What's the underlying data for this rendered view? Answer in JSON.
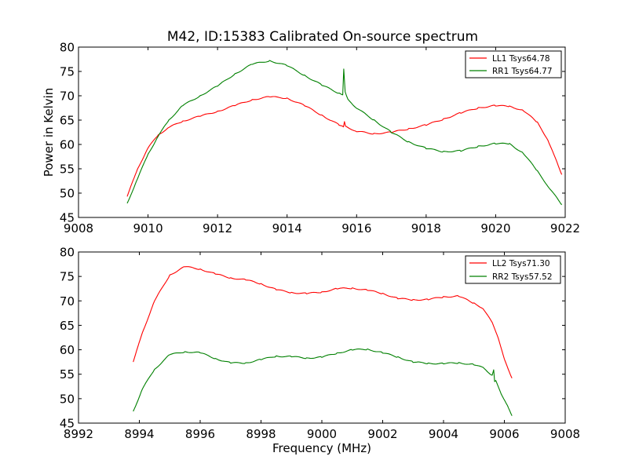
{
  "title": "M42, ID:15383 Calibrated On-source spectrum",
  "chart_data": [
    {
      "type": "line",
      "title": "M42, ID:15383 Calibrated On-source spectrum",
      "xlabel": "",
      "ylabel": "Power in Kelvin",
      "xlim": [
        9008,
        9022
      ],
      "ylim": [
        45,
        80
      ],
      "xticks": [
        9008,
        9010,
        9012,
        9014,
        9016,
        9018,
        9020,
        9022
      ],
      "yticks": [
        45,
        50,
        55,
        60,
        65,
        70,
        75,
        80
      ],
      "grid": false,
      "legend_position": "top-right",
      "series": [
        {
          "name": "LL1 Tsys64.78",
          "color": "#ff0000",
          "x": [
            9009.4,
            9009.7,
            9010.0,
            9010.3,
            9010.6,
            9011.0,
            9011.5,
            9012.0,
            9012.5,
            9013.0,
            9013.5,
            9014.0,
            9014.5,
            9015.0,
            9015.5,
            9015.62,
            9015.65,
            9015.68,
            9016.0,
            9016.5,
            9017.0,
            9017.5,
            9018.0,
            9018.5,
            9019.0,
            9019.5,
            9020.0,
            9020.4,
            9020.8,
            9021.2,
            9021.5,
            9021.9
          ],
          "y": [
            49.3,
            55.0,
            59.3,
            62.0,
            63.5,
            64.8,
            65.8,
            66.8,
            68.0,
            69.2,
            69.8,
            69.5,
            68.0,
            66.0,
            64.0,
            63.6,
            64.7,
            63.7,
            62.7,
            62.2,
            62.5,
            63.2,
            64.0,
            65.2,
            66.5,
            67.5,
            68.0,
            67.8,
            67.0,
            64.5,
            61.0,
            53.8
          ]
        },
        {
          "name": "RR1 Tsys64.77",
          "color": "#008000",
          "x": [
            9009.4,
            9009.7,
            9010.0,
            9010.3,
            9010.6,
            9011.0,
            9011.5,
            9012.0,
            9012.5,
            9013.0,
            9013.5,
            9014.0,
            9014.5,
            9015.0,
            9015.5,
            9015.6,
            9015.63,
            9015.67,
            9015.75,
            9016.0,
            9016.5,
            9017.0,
            9017.5,
            9018.0,
            9018.5,
            9019.0,
            9019.5,
            9020.0,
            9020.4,
            9020.8,
            9021.2,
            9021.5,
            9021.9
          ],
          "y": [
            47.9,
            53.0,
            58.0,
            61.8,
            65.0,
            68.0,
            70.0,
            72.0,
            74.5,
            76.5,
            77.2,
            76.2,
            74.2,
            72.2,
            70.5,
            70.2,
            75.5,
            70.8,
            69.2,
            67.5,
            65.0,
            62.5,
            60.5,
            59.2,
            58.5,
            58.7,
            59.6,
            60.2,
            60.1,
            58.2,
            54.5,
            51.5,
            47.6
          ]
        }
      ]
    },
    {
      "type": "line",
      "title": "",
      "xlabel": "Frequency (MHz)",
      "ylabel": "",
      "xlim": [
        8992,
        9008
      ],
      "ylim": [
        45,
        80
      ],
      "xticks": [
        8992,
        8994,
        8996,
        8998,
        9000,
        9002,
        9004,
        9006,
        9008
      ],
      "yticks": [
        45,
        50,
        55,
        60,
        65,
        70,
        75,
        80
      ],
      "grid": false,
      "legend_position": "top-right",
      "series": [
        {
          "name": "LL2 Tsys71.30",
          "color": "#ff0000",
          "x": [
            8993.8,
            8994.1,
            8994.5,
            8995.0,
            8995.5,
            8996.0,
            8996.5,
            8997.0,
            8997.5,
            8998.0,
            8998.5,
            8999.0,
            8999.5,
            9000.0,
            9000.5,
            9001.0,
            9001.5,
            9002.0,
            9002.5,
            9003.0,
            9003.5,
            9004.0,
            9004.5,
            9005.0,
            9005.3,
            9005.6,
            9005.8,
            9006.0,
            9006.25
          ],
          "y": [
            57.5,
            63.5,
            70.0,
            75.3,
            77.0,
            76.5,
            75.5,
            74.7,
            74.3,
            73.5,
            72.3,
            71.7,
            71.5,
            71.8,
            72.5,
            72.6,
            72.2,
            71.5,
            70.5,
            70.2,
            70.3,
            70.8,
            71.0,
            69.5,
            68.5,
            65.5,
            62.5,
            58.0,
            54.2
          ]
        },
        {
          "name": "RR2 Tsys57.52",
          "color": "#008000",
          "x": [
            8993.8,
            8994.1,
            8994.5,
            8995.0,
            8995.5,
            8996.0,
            8996.5,
            8997.0,
            8997.5,
            8998.0,
            8998.5,
            8999.0,
            8999.5,
            9000.0,
            9000.5,
            9001.0,
            9001.5,
            9002.0,
            9002.5,
            9003.0,
            9003.5,
            9004.0,
            9004.5,
            9005.0,
            9005.3,
            9005.6,
            9005.65,
            9005.68,
            9005.72,
            9005.9,
            9006.1,
            9006.25
          ],
          "y": [
            47.4,
            52.0,
            56.0,
            59.0,
            59.6,
            59.4,
            58.2,
            57.3,
            57.3,
            58.0,
            58.7,
            58.6,
            58.3,
            58.5,
            59.3,
            60.0,
            60.1,
            59.4,
            58.5,
            57.5,
            57.2,
            57.2,
            57.3,
            57.0,
            56.3,
            54.8,
            55.9,
            53.5,
            53.6,
            51.0,
            48.5,
            46.5
          ]
        }
      ]
    }
  ]
}
